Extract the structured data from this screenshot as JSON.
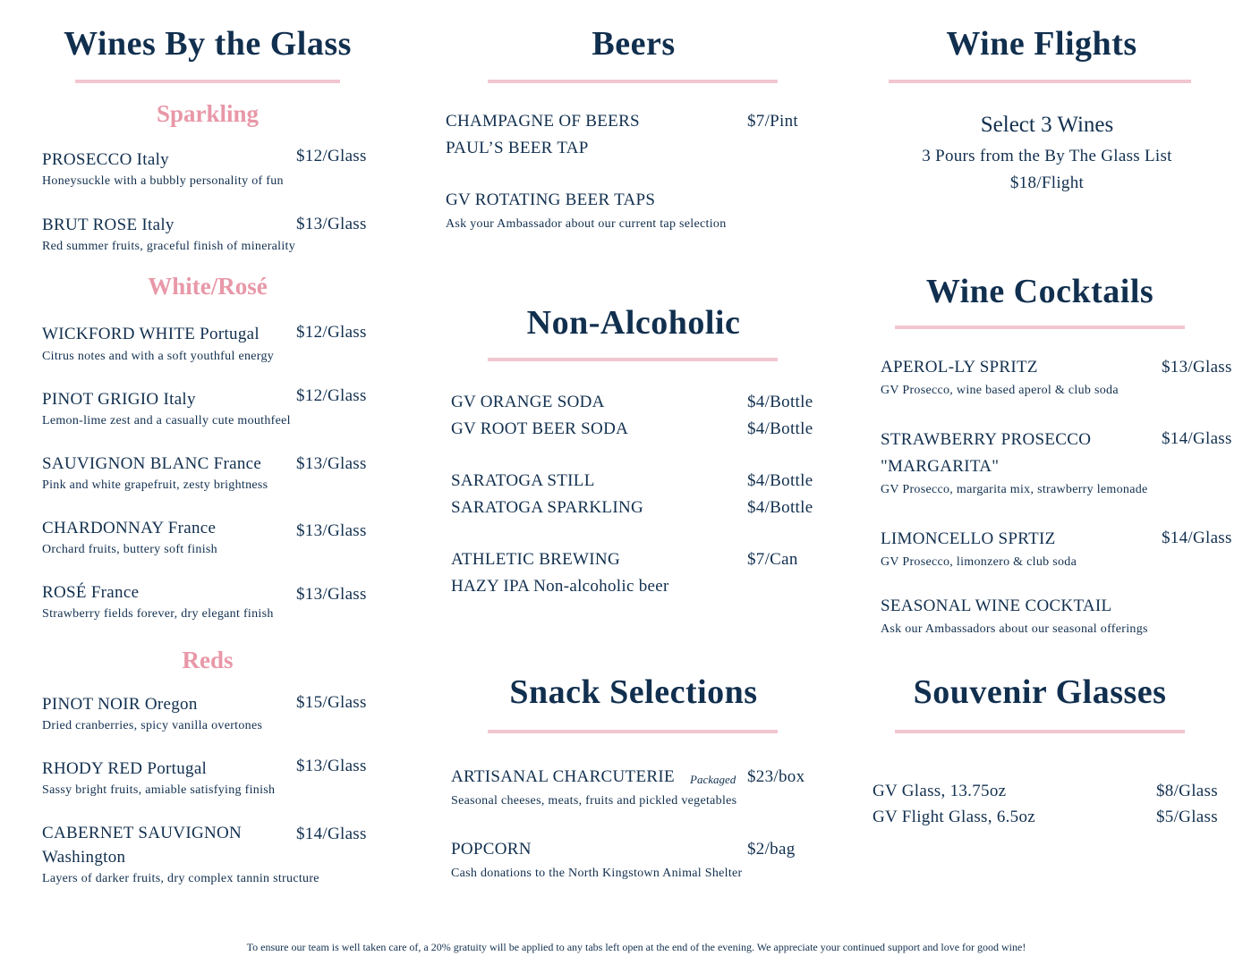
{
  "colors": {
    "text": "#112f4e",
    "accent": "#e898a8",
    "rule": "#f2c6d0"
  },
  "wines_by_glass": {
    "title": "Wines By the Glass",
    "sparkling": {
      "title": "Sparkling",
      "items": [
        {
          "name": "PROSECCO Italy",
          "price": "$12/Glass",
          "desc": "Honeysuckle with a bubbly personality of fun"
        },
        {
          "name": "BRUT ROSE Italy",
          "price": "$13/Glass",
          "desc": "Red summer fruits, graceful finish of minerality"
        }
      ]
    },
    "white_rose": {
      "title": "White/Rosé",
      "items": [
        {
          "name": "WICKFORD WHITE Portugal",
          "price": "$12/Glass",
          "desc": "Citrus notes and with a soft youthful energy"
        },
        {
          "name": "PINOT GRIGIO Italy",
          "price": "$12/Glass",
          "desc": "Lemon-lime zest and a casually cute mouthfeel"
        },
        {
          "name": "SAUVIGNON BLANC France",
          "price": "$13/Glass",
          "desc": "Pink and white grapefruit, zesty brightness"
        },
        {
          "name": "CHARDONNAY France",
          "price": "$13/Glass",
          "desc": "Orchard fruits, buttery soft finish"
        },
        {
          "name": "ROSÉ France",
          "price": "$13/Glass",
          "desc": "Strawberry fields forever, dry elegant finish"
        }
      ]
    },
    "reds": {
      "title": "Reds",
      "items": [
        {
          "name": "PINOT NOIR Oregon",
          "price": "$15/Glass",
          "desc": "Dried cranberries, spicy vanilla overtones"
        },
        {
          "name": "RHODY RED Portugal",
          "price": "$13/Glass",
          "desc": "Sassy bright fruits, amiable satisfying finish"
        },
        {
          "name": "CABERNET SAUVIGNON",
          "name2": "Washington",
          "price": "$14/Glass",
          "desc": "Layers of darker fruits, dry complex tannin structure"
        }
      ]
    }
  },
  "beers": {
    "title": "Beers",
    "items": [
      {
        "name": "CHAMPAGNE OF BEERS",
        "price": "$7/Pint",
        "name2": "PAUL’S BEER TAP"
      },
      {
        "name": "GV ROTATING BEER TAPS",
        "desc": "Ask your Ambassador about our current tap selection"
      }
    ]
  },
  "non_alcoholic": {
    "title": "Non-Alcoholic",
    "items": [
      {
        "name": "GV ORANGE SODA",
        "price": "$4/Bottle"
      },
      {
        "name": "GV ROOT BEER SODA",
        "price": "$4/Bottle"
      },
      {
        "name": "SARATOGA STILL",
        "price": "$4/Bottle"
      },
      {
        "name": "SARATOGA SPARKLING",
        "price": "$4/Bottle"
      },
      {
        "name": "ATHLETIC BREWING",
        "price": "$7/Can",
        "name2": "HAZY IPA Non-alcoholic beer"
      }
    ]
  },
  "snacks": {
    "title": "Snack Selections",
    "items": [
      {
        "name": "ARTISANAL CHARCUTERIE",
        "tag": "Packaged",
        "price": "$23/box",
        "desc": "Seasonal cheeses, meats, fruits and pickled vegetables"
      },
      {
        "name": "POPCORN",
        "price": "$2/bag",
        "desc": "Cash donations to the North Kingstown Animal Shelter"
      }
    ]
  },
  "wine_flights": {
    "title": "Wine Flights",
    "line1": "Select 3 Wines",
    "line2": "3 Pours from the By The Glass List",
    "line3": "$18/Flight"
  },
  "wine_cocktails": {
    "title": "Wine Cocktails",
    "items": [
      {
        "name": "APEROL-LY SPRITZ",
        "price": "$13/Glass",
        "desc": "GV Prosecco, wine based aperol & club soda"
      },
      {
        "name": "STRAWBERRY PROSECCO",
        "name2": "\"MARGARITA\"",
        "price": "$14/Glass",
        "desc": "GV Prosecco, margarita mix, strawberry lemonade"
      },
      {
        "name": "LIMONCELLO SPRTIZ",
        "price": "$14/Glass",
        "desc": "GV Prosecco, limonzero & club soda"
      },
      {
        "name": "SEASONAL WINE COCKTAIL",
        "desc": "Ask our Ambassadors about our seasonal offerings"
      }
    ]
  },
  "souvenir": {
    "title": "Souvenir Glasses",
    "items": [
      {
        "name": "GV Glass, 13.75oz",
        "price": "$8/Glass"
      },
      {
        "name": "GV Flight Glass, 6.5oz",
        "price": "$5/Glass"
      }
    ]
  },
  "footer": "To ensure our team is well taken care of, a 20% gratuity will be applied to any tabs left open at the end of the evening. We appreciate your continued support and love for good wine!"
}
